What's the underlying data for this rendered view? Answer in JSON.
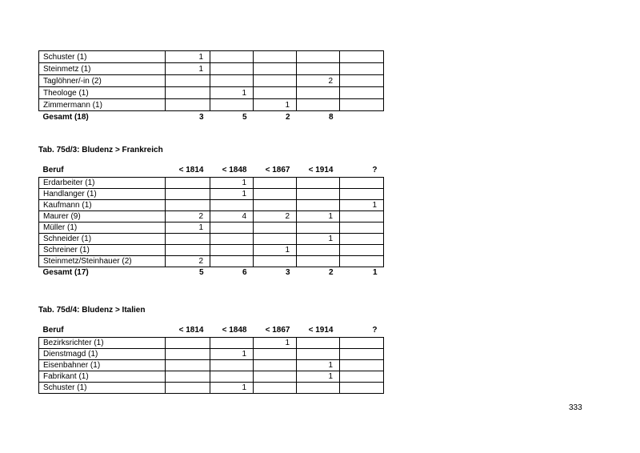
{
  "page": {
    "number": "333"
  },
  "columns": [
    "Beruf",
    "< 1814",
    "< 1848",
    "< 1867",
    "< 1914",
    "?"
  ],
  "table1": {
    "rows": [
      {
        "label": "Schuster (1)",
        "values": [
          "1",
          "",
          "",
          "",
          ""
        ]
      },
      {
        "label": "Steinmetz (1)",
        "values": [
          "1",
          "",
          "",
          "",
          ""
        ]
      },
      {
        "label": "Taglöhner/-in (2)",
        "values": [
          "",
          "",
          "",
          "2",
          ""
        ]
      },
      {
        "label": "Theologe (1)",
        "values": [
          "",
          "1",
          "",
          "",
          ""
        ]
      },
      {
        "label": "Zimmermann (1)",
        "values": [
          "",
          "",
          "1",
          "",
          ""
        ]
      }
    ],
    "total": {
      "label": "Gesamt (18)",
      "values": [
        "3",
        "5",
        "2",
        "8",
        ""
      ]
    }
  },
  "table2": {
    "title": "Tab. 75d/3: Bludenz > Frankreich",
    "rows": [
      {
        "label": "Erdarbeiter (1)",
        "values": [
          "",
          "1",
          "",
          "",
          ""
        ]
      },
      {
        "label": "Handlanger (1)",
        "values": [
          "",
          "1",
          "",
          "",
          ""
        ]
      },
      {
        "label": "Kaufmann (1)",
        "values": [
          "",
          "",
          "",
          "",
          "1"
        ]
      },
      {
        "label": "Maurer (9)",
        "values": [
          "2",
          "4",
          "2",
          "1",
          ""
        ]
      },
      {
        "label": "Müller (1)",
        "values": [
          "1",
          "",
          "",
          "",
          ""
        ]
      },
      {
        "label": "Schneider (1)",
        "values": [
          "",
          "",
          "",
          "1",
          ""
        ]
      },
      {
        "label": "Schreiner (1)",
        "values": [
          "",
          "",
          "1",
          "",
          ""
        ]
      },
      {
        "label": "Steinmetz/Steinhauer (2)",
        "values": [
          "2",
          "",
          "",
          "",
          ""
        ]
      }
    ],
    "total": {
      "label": "Gesamt (17)",
      "values": [
        "5",
        "6",
        "3",
        "2",
        "1"
      ]
    }
  },
  "table3": {
    "title": "Tab. 75d/4: Bludenz > Italien",
    "rows": [
      {
        "label": "Bezirksrichter (1)",
        "values": [
          "",
          "",
          "1",
          "",
          ""
        ]
      },
      {
        "label": "Dienstmagd (1)",
        "values": [
          "",
          "1",
          "",
          "",
          ""
        ]
      },
      {
        "label": "Eisenbahner (1)",
        "values": [
          "",
          "",
          "",
          "1",
          ""
        ]
      },
      {
        "label": "Fabrikant (1)",
        "values": [
          "",
          "",
          "",
          "1",
          ""
        ]
      },
      {
        "label": "Schuster (1)",
        "values": [
          "",
          "1",
          "",
          "",
          ""
        ]
      }
    ]
  }
}
